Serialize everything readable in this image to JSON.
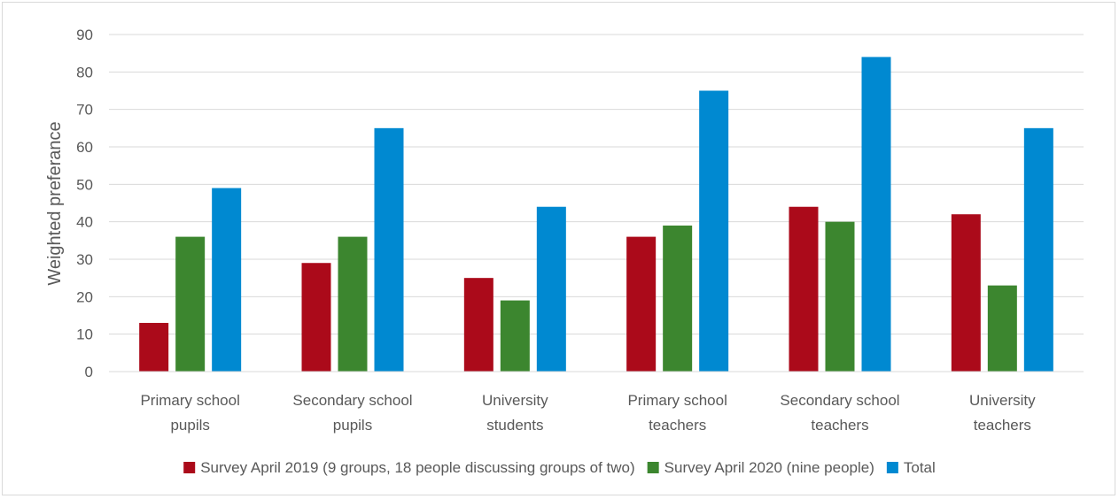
{
  "chart_data": {
    "type": "bar",
    "title": "",
    "xlabel": "",
    "ylabel": "Weighted preferance",
    "ylim": [
      0,
      90
    ],
    "yticks": [
      0,
      10,
      20,
      30,
      40,
      50,
      60,
      70,
      80,
      90
    ],
    "grid": true,
    "legend_position": "bottom",
    "categories": [
      [
        "Primary school",
        "pupils"
      ],
      [
        "Secondary school",
        "pupils"
      ],
      [
        "University",
        "students"
      ],
      [
        "Primary school",
        "teachers"
      ],
      [
        "Secondary school",
        "teachers"
      ],
      [
        "University",
        "teachers"
      ]
    ],
    "series": [
      {
        "name": "Survey April 2019 (9 groups, 18 people discussing groups of two)",
        "color": "#ab0a1a",
        "values": [
          13,
          29,
          25,
          36,
          44,
          42
        ]
      },
      {
        "name": "Survey April 2020 (nine people)",
        "color": "#3c862f",
        "values": [
          36,
          36,
          19,
          39,
          40,
          23
        ]
      },
      {
        "name": "Total",
        "color": "#0089d1",
        "values": [
          49,
          65,
          44,
          75,
          84,
          65
        ]
      }
    ]
  }
}
